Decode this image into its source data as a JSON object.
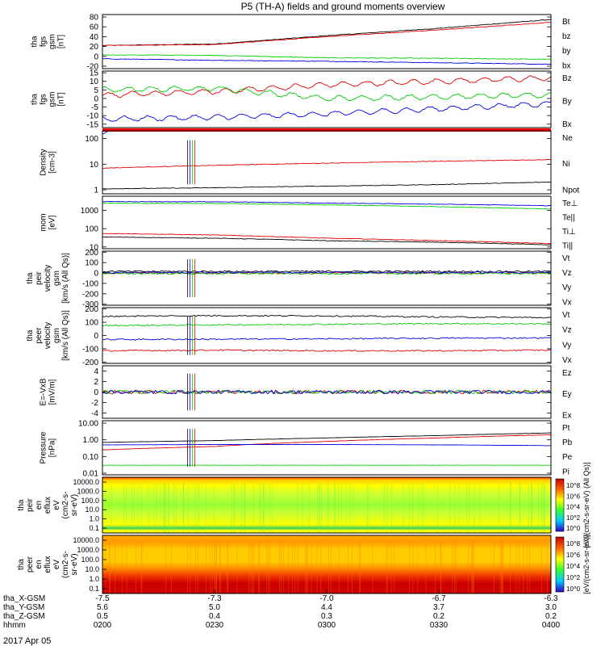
{
  "title": "P5 (TH-A) fields and ground moments overview",
  "chart_data": [
    {
      "type": "line",
      "panel": "fgs-gsm",
      "ylabel": [
        "tha",
        "fgs",
        "gsm",
        "[nT]"
      ],
      "yticks": [
        80,
        60,
        40,
        20,
        0,
        -20
      ],
      "ylim": [
        -25,
        85
      ],
      "series": [
        {
          "name": "Bt",
          "color": "#000000",
          "values": [
            [
              0,
              22
            ],
            [
              0.25,
              25
            ],
            [
              0.5,
              42
            ],
            [
              0.75,
              57
            ],
            [
              1,
              75
            ]
          ]
        },
        {
          "name": "bz",
          "color": "#e00000",
          "values": [
            [
              0,
              22
            ],
            [
              0.25,
              24
            ],
            [
              0.5,
              40
            ],
            [
              0.75,
              54
            ],
            [
              1,
              69
            ]
          ]
        },
        {
          "name": "by",
          "color": "#00cc00",
          "values": [
            [
              0,
              3
            ],
            [
              0.25,
              2
            ],
            [
              0.5,
              -3
            ],
            [
              0.75,
              -4
            ],
            [
              1,
              -6
            ]
          ]
        },
        {
          "name": "bx",
          "color": "#0000e0",
          "values": [
            [
              0,
              -5
            ],
            [
              0.25,
              -8
            ],
            [
              0.5,
              -10
            ],
            [
              0.75,
              -13
            ],
            [
              1,
              -16
            ]
          ]
        }
      ]
    },
    {
      "type": "line",
      "panel": "fgs-dsl",
      "ylabel": [
        "tha",
        "fgs",
        "gsm",
        "[nT]"
      ],
      "yticks": [
        15,
        10,
        5,
        0,
        -5,
        -10,
        -15
      ],
      "ylim": [
        -17,
        16
      ],
      "series": [
        {
          "name": "Bz",
          "color": "#e00000",
          "values": [
            [
              0,
              2
            ],
            [
              0.25,
              4
            ],
            [
              0.5,
              8
            ],
            [
              0.75,
              10
            ],
            [
              1,
              12
            ]
          ]
        },
        {
          "name": "By",
          "color": "#00cc00",
          "values": [
            [
              0,
              5
            ],
            [
              0.25,
              6
            ],
            [
              0.5,
              0
            ],
            [
              0.75,
              1
            ],
            [
              1,
              2
            ]
          ]
        },
        {
          "name": "Bx",
          "color": "#0000e0",
          "values": [
            [
              0,
              -12
            ],
            [
              0.25,
              -11
            ],
            [
              0.5,
              -9
            ],
            [
              0.75,
              -6
            ],
            [
              1,
              -3
            ]
          ]
        }
      ]
    },
    {
      "type": "line",
      "panel": "density",
      "ylabel": [
        "Density",
        "[cm-3]"
      ],
      "yticks": [
        "100",
        "10",
        "1"
      ],
      "ylim": [
        0.7,
        200
      ],
      "yscale": "log",
      "series": [
        {
          "name": "Ne",
          "color": "#e00000",
          "values": [
            [
              0,
              7
            ],
            [
              0.25,
              9
            ],
            [
              0.5,
              11
            ],
            [
              0.75,
              13
            ],
            [
              1,
              15
            ]
          ]
        },
        {
          "name": "Ni",
          "color": "#000000",
          "values": [
            [
              0,
              1.1
            ],
            [
              0.25,
              1.2
            ],
            [
              0.5,
              1.4
            ],
            [
              0.75,
              1.6
            ],
            [
              1,
              2.0
            ]
          ]
        },
        {
          "name": "Npot",
          "color": "#0000e0",
          "values": [
            [
              0,
              150
            ],
            [
              0.03,
              250
            ]
          ]
        }
      ]
    },
    {
      "type": "line",
      "panel": "temperature",
      "ylabel": [
        "mom",
        "[eV]"
      ],
      "yticks": [
        "1000",
        "100",
        "10"
      ],
      "ylim": [
        8,
        6000
      ],
      "yscale": "log",
      "series": [
        {
          "name": "Te⊥",
          "color": "#e00000",
          "values": [
            [
              0,
              55
            ],
            [
              0.25,
              45
            ],
            [
              0.5,
              30
            ],
            [
              0.75,
              22
            ],
            [
              1,
              15
            ]
          ]
        },
        {
          "name": "Te||",
          "color": "#000000",
          "values": [
            [
              0,
              35
            ],
            [
              0.25,
              30
            ],
            [
              0.5,
              22
            ],
            [
              0.75,
              18
            ],
            [
              1,
              13
            ]
          ]
        },
        {
          "name": "Ti⊥",
          "color": "#0000e0",
          "values": [
            [
              0,
              3000
            ],
            [
              0.25,
              3000
            ],
            [
              0.5,
              2500
            ],
            [
              0.75,
              2200
            ],
            [
              1,
              1800
            ]
          ]
        },
        {
          "name": "Ti||",
          "color": "#00cc00",
          "values": [
            [
              0,
              2500
            ],
            [
              0.25,
              2400
            ],
            [
              0.5,
              2000
            ],
            [
              0.75,
              1600
            ],
            [
              1,
              1200
            ]
          ]
        }
      ]
    },
    {
      "type": "line",
      "panel": "peir-velocity",
      "ylabel": [
        "tha",
        "peir",
        "velocity",
        "gsm",
        "[km/s (All Qs)]"
      ],
      "yticks": [
        200,
        100,
        0,
        -100,
        -200,
        -300
      ],
      "ylim": [
        -310,
        210
      ],
      "series": [
        {
          "name": "Vt",
          "color": "#000000",
          "values": [
            [
              0,
              15
            ],
            [
              1,
              15
            ]
          ]
        },
        {
          "name": "Vz",
          "color": "#e00000",
          "values": [
            [
              0,
              0
            ],
            [
              1,
              0
            ]
          ]
        },
        {
          "name": "Vy",
          "color": "#00cc00",
          "values": [
            [
              0,
              -5
            ],
            [
              1,
              -5
            ]
          ]
        },
        {
          "name": "Vx",
          "color": "#0000e0",
          "values": [
            [
              0,
              5
            ],
            [
              1,
              5
            ]
          ]
        }
      ]
    },
    {
      "type": "line",
      "panel": "peer-velocity",
      "ylabel": [
        "tha",
        "peer",
        "velocity",
        "gsm",
        "[km/s (All Qs)]"
      ],
      "yticks": [
        200,
        100,
        0,
        -100,
        -200
      ],
      "ylim": [
        -210,
        210
      ],
      "series": [
        {
          "name": "Vt",
          "color": "#000000",
          "values": [
            [
              0,
              145
            ],
            [
              0.25,
              150
            ],
            [
              0.5,
              148
            ],
            [
              0.75,
              140
            ],
            [
              1,
              135
            ]
          ]
        },
        {
          "name": "Vz",
          "color": "#e00000",
          "values": [
            [
              0,
              -115
            ],
            [
              0.25,
              -110
            ],
            [
              0.5,
              -115
            ],
            [
              0.75,
              -115
            ],
            [
              1,
              -110
            ]
          ]
        },
        {
          "name": "Vy",
          "color": "#00cc00",
          "values": [
            [
              0,
              75
            ],
            [
              0.25,
              80
            ],
            [
              0.5,
              85
            ],
            [
              0.75,
              90
            ],
            [
              1,
              88
            ]
          ]
        },
        {
          "name": "Vx",
          "color": "#0000e0",
          "values": [
            [
              0,
              -30
            ],
            [
              0.25,
              -28
            ],
            [
              0.5,
              -25
            ],
            [
              0.75,
              -20
            ],
            [
              1,
              -18
            ]
          ]
        }
      ]
    },
    {
      "type": "line",
      "panel": "efield",
      "ylabel": [
        "E=-VxB",
        "[mV/m]"
      ],
      "yticks": [
        4,
        2,
        0,
        -2,
        -4
      ],
      "ylim": [
        -5,
        5
      ],
      "series": [
        {
          "name": "Ez",
          "color": "#e00000",
          "values": [
            [
              0,
              0
            ],
            [
              1,
              0
            ]
          ]
        },
        {
          "name": "Ey",
          "color": "#00cc00",
          "values": [
            [
              0,
              0
            ],
            [
              1,
              0
            ]
          ]
        },
        {
          "name": "Ex",
          "color": "#0000e0",
          "values": [
            [
              0,
              0
            ],
            [
              1,
              0
            ]
          ]
        }
      ]
    },
    {
      "type": "line",
      "panel": "pressure",
      "ylabel": [
        "Pressure",
        "[nPa]"
      ],
      "yticks": [
        "10.00",
        "1.00",
        "0.10",
        "0.01"
      ],
      "ylim": [
        0.008,
        14
      ],
      "yscale": "log",
      "series": [
        {
          "name": "Pt",
          "color": "#000000",
          "values": [
            [
              0,
              0.7
            ],
            [
              0.25,
              0.9
            ],
            [
              0.5,
              1.3
            ],
            [
              0.75,
              1.8
            ],
            [
              1,
              2.6
            ]
          ]
        },
        {
          "name": "Pb",
          "color": "#e00000",
          "values": [
            [
              0,
              0.25
            ],
            [
              0.25,
              0.4
            ],
            [
              0.5,
              0.8
            ],
            [
              0.75,
              1.3
            ],
            [
              1,
              2.0
            ]
          ]
        },
        {
          "name": "Pe",
          "color": "#0000e0",
          "values": [
            [
              0,
              0.5
            ],
            [
              0.25,
              0.52
            ],
            [
              0.5,
              0.52
            ],
            [
              0.75,
              0.5
            ],
            [
              1,
              0.45
            ]
          ]
        },
        {
          "name": "Pi",
          "color": "#00cc00",
          "values": [
            [
              0,
              0.03
            ],
            [
              0.25,
              0.03
            ],
            [
              0.5,
              0.03
            ],
            [
              0.75,
              0.03
            ],
            [
              1,
              0.03
            ]
          ]
        }
      ]
    },
    {
      "type": "heatmap",
      "panel": "peir-spectrogram",
      "ylabel": [
        "tha",
        "peir",
        "en",
        "eflux",
        "eV",
        "(cm2-s-",
        "sr-eV)"
      ],
      "yticks": [
        "10000.0",
        "1000.0",
        "100.0",
        "10.0",
        "1.0",
        "0.1"
      ],
      "yscale": "log",
      "colorbar": {
        "label": "[eV/(cm2-s-sr-eV) (All Qs)]",
        "ticks": [
          "10^8",
          "10^6",
          "10^4",
          "10^2",
          "10^0"
        ]
      }
    },
    {
      "type": "heatmap",
      "panel": "peer-spectrogram",
      "ylabel": [
        "tha",
        "peer",
        "en",
        "eflux",
        "eV",
        "(cm2-s-",
        "sr-eV)"
      ],
      "yticks": [
        "10000.0",
        "1000.0",
        "100.0",
        "10.0",
        "1.0",
        "0.1"
      ],
      "yscale": "log",
      "colorbar": {
        "label": "[eV/(cm2-s-sr-eV)]",
        "ticks": [
          "10^8",
          "10^6",
          "10^4",
          "10^2",
          "10^0"
        ]
      }
    }
  ],
  "xaxis": {
    "rows": [
      {
        "label": "tha_X-GSM",
        "values": [
          "-7.5",
          "-7.3",
          "-7.0",
          "-6.7",
          "-6.3"
        ]
      },
      {
        "label": "tha_Y-GSM",
        "values": [
          "5.6",
          "5.0",
          "4.4",
          "3.7",
          "3.0"
        ]
      },
      {
        "label": "tha_Z-GSM",
        "values": [
          "0.5",
          "0.4",
          "0.3",
          "0.2",
          "0.2"
        ]
      },
      {
        "label": "hhmm",
        "values": [
          "0200",
          "0230",
          "0300",
          "0330",
          "0400"
        ]
      }
    ],
    "date": "2017 Apr 05"
  },
  "colors": {
    "black": "#000000",
    "red": "#e00000",
    "green": "#00cc00",
    "blue": "#0000e0"
  }
}
